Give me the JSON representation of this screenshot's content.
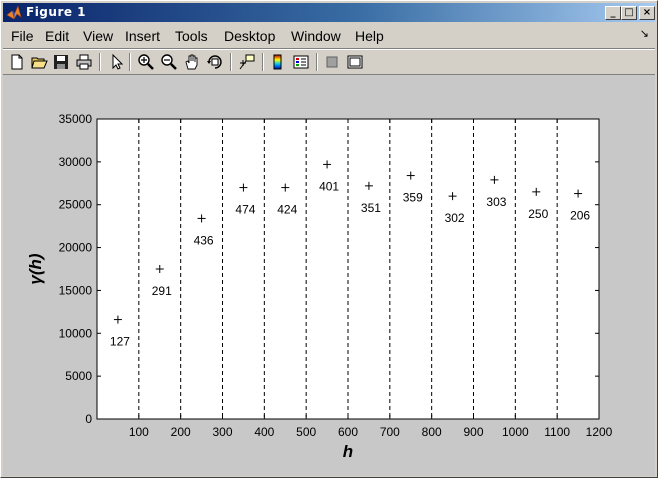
{
  "window": {
    "title": "Figure 1",
    "controls": {
      "minimize": "_",
      "maximize": "□",
      "close": "×"
    }
  },
  "menu": {
    "items": [
      "File",
      "Edit",
      "View",
      "Insert",
      "Tools",
      "Desktop",
      "Window",
      "Help"
    ],
    "dock_arrow": "↘"
  },
  "toolbar": {
    "icons": [
      "new-figure-icon",
      "open-file-icon",
      "save-icon",
      "print-icon",
      "edit-plot-arrow-icon",
      "zoom-in-icon",
      "zoom-out-icon",
      "pan-hand-icon",
      "rotate-3d-icon",
      "data-cursor-icon",
      "colorbar-icon",
      "legend-icon",
      "hide-plot-tools-icon",
      "show-plot-tools-icon"
    ]
  },
  "chart_data": {
    "type": "scatter",
    "title": "",
    "xlabel": "h",
    "ylabel": "γ(h)",
    "xlim": [
      0,
      1200
    ],
    "ylim": [
      0,
      35000
    ],
    "xticks": [
      100,
      200,
      300,
      400,
      500,
      600,
      700,
      800,
      900,
      1000,
      1100,
      1200
    ],
    "yticks": [
      0,
      5000,
      10000,
      15000,
      20000,
      25000,
      30000,
      35000
    ],
    "vlines": [
      100,
      200,
      300,
      400,
      500,
      600,
      700,
      800,
      900,
      1000,
      1100
    ],
    "grid": false,
    "marker": "+",
    "points": [
      {
        "x": 50,
        "y": 11600,
        "label": "127"
      },
      {
        "x": 150,
        "y": 17500,
        "label": "291"
      },
      {
        "x": 250,
        "y": 23400,
        "label": "436"
      },
      {
        "x": 350,
        "y": 27000,
        "label": "474"
      },
      {
        "x": 450,
        "y": 27000,
        "label": "424"
      },
      {
        "x": 550,
        "y": 29700,
        "label": "401"
      },
      {
        "x": 650,
        "y": 27200,
        "label": "351"
      },
      {
        "x": 750,
        "y": 28400,
        "label": "359"
      },
      {
        "x": 850,
        "y": 26000,
        "label": "302"
      },
      {
        "x": 950,
        "y": 27900,
        "label": "303"
      },
      {
        "x": 1050,
        "y": 26500,
        "label": "250"
      },
      {
        "x": 1150,
        "y": 26300,
        "label": "206"
      }
    ]
  }
}
